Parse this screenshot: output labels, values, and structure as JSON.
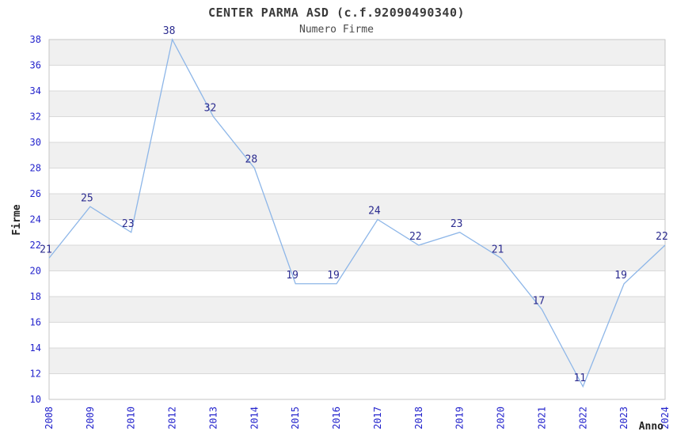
{
  "chart_data": {
    "type": "line",
    "title": "CENTER PARMA ASD (c.f.92090490340)",
    "subtitle": "Numero Firme",
    "xlabel": "Anno",
    "ylabel": "Firme",
    "categories": [
      "2008",
      "2009",
      "2010",
      "2012",
      "2013",
      "2014",
      "2015",
      "2016",
      "2017",
      "2018",
      "2019",
      "2020",
      "2021",
      "2022",
      "2023",
      "2024"
    ],
    "values": [
      21,
      25,
      23,
      38,
      32,
      28,
      19,
      19,
      24,
      22,
      23,
      21,
      17,
      11,
      19,
      22
    ],
    "ylim": [
      10,
      38
    ],
    "ytick_step": 2,
    "yticks": [
      10,
      12,
      14,
      16,
      18,
      20,
      22,
      24,
      26,
      28,
      30,
      32,
      34,
      36,
      38
    ],
    "x_tick_rotation": -90,
    "grid": "horizontal",
    "band_fill": "alternating-horizontal",
    "legend": "none",
    "point_markers": "none",
    "colors": {
      "line": "#8db6e8",
      "axis_tick_labels": "#2323cc",
      "point_labels": "#2b2b8f",
      "title": "#3a3a3a",
      "subtitle": "#4a4a4a",
      "axis_titles": "#222222",
      "band": "#f0f0f0",
      "gridline": "#d9d9d9",
      "plot_border": "#c6c6c6",
      "background": "#ffffff"
    }
  }
}
